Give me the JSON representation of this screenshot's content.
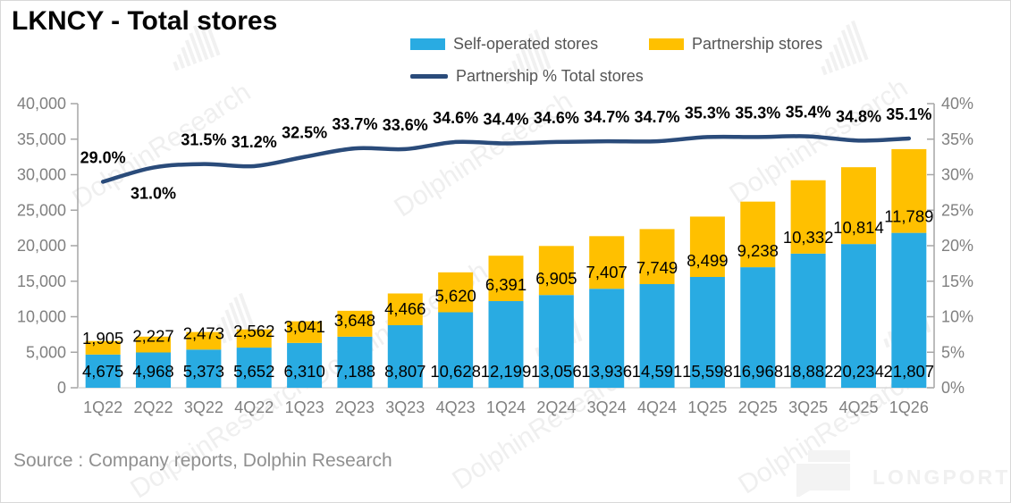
{
  "title": "LKNCY - Total stores",
  "source": "Source : Company reports, Dolphin Research",
  "watermark_text": "DolphinResearch",
  "brand_logo": "LONGPORT",
  "colors": {
    "self_operated": "#29abe2",
    "partnership": "#ffc000",
    "line": "#2a4b7a",
    "axis": "#a6a6a6",
    "baseline": "#d9d9d9",
    "tick_label": "#808080",
    "data_label": "#000000",
    "legend_text": "#555555"
  },
  "legend": {
    "items": [
      {
        "label": "Self-operated stores",
        "swatch": "box",
        "color": "#29abe2"
      },
      {
        "label": "Partnership stores",
        "swatch": "box",
        "color": "#ffc000"
      },
      {
        "label": "Partnership % Total stores",
        "swatch": "line",
        "color": "#2a4b7a"
      }
    ]
  },
  "chart_data": {
    "type": "bar",
    "subtype": "stacked-bars-with-percentage-line",
    "title": "LKNCY - Total stores",
    "categories": [
      "1Q22",
      "2Q22",
      "3Q22",
      "4Q22",
      "1Q23",
      "2Q23",
      "3Q23",
      "4Q23",
      "1Q24",
      "2Q24",
      "3Q24",
      "4Q24",
      "1Q25",
      "2Q25",
      "3Q25",
      "4Q25",
      "1Q26"
    ],
    "series": [
      {
        "name": "Self-operated stores",
        "type": "bar",
        "stack": "stores",
        "color": "#29abe2",
        "values": [
          4675,
          4968,
          5373,
          5652,
          6310,
          7188,
          8807,
          10628,
          12199,
          13056,
          13936,
          14591,
          15598,
          16968,
          18882,
          20234,
          21807
        ]
      },
      {
        "name": "Partnership stores",
        "type": "bar",
        "stack": "stores",
        "color": "#ffc000",
        "values": [
          1905,
          2227,
          2473,
          2562,
          3041,
          3648,
          4466,
          5620,
          6391,
          6905,
          7407,
          7749,
          8499,
          9238,
          10332,
          10814,
          11789
        ]
      },
      {
        "name": "Partnership % Total stores",
        "type": "line",
        "axis": "right",
        "color": "#2a4b7a",
        "values": [
          29.0,
          31.0,
          31.5,
          31.2,
          32.5,
          33.7,
          33.6,
          34.6,
          34.4,
          34.6,
          34.7,
          34.7,
          35.3,
          35.3,
          35.4,
          34.8,
          35.1
        ]
      }
    ],
    "left_axis": {
      "min": 0,
      "max": 40000,
      "step": 5000
    },
    "right_axis": {
      "min": 0,
      "max": 40,
      "step": 5,
      "suffix": "%"
    },
    "grid": false,
    "legend_position": "top",
    "line_label_below_indices": [
      1
    ]
  }
}
